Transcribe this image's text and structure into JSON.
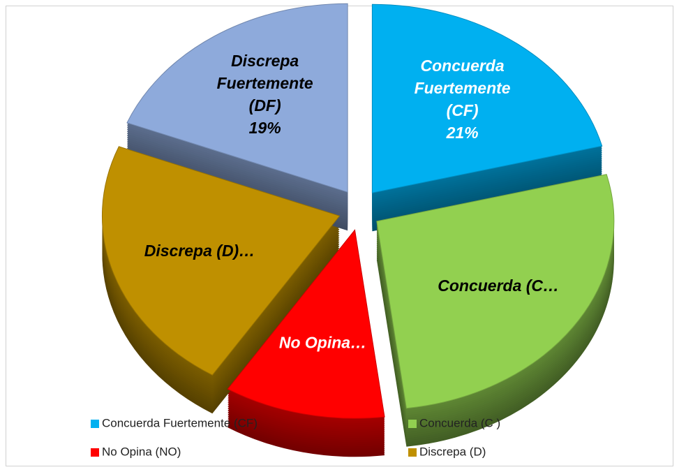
{
  "chart_data": {
    "type": "pie",
    "categories": [
      "Concuerda Fuertemente (CF)",
      "Concuerda (C )",
      "No Opina (NO)",
      "Discrepa (D)",
      "Discrepa Fuertemente (DF)"
    ],
    "values": [
      21,
      27,
      11,
      22,
      19
    ],
    "value_labels": [
      [
        "Concuerda",
        "Fuertemente",
        "(CF)",
        "21%"
      ],
      [
        "Concuerda (C…"
      ],
      [
        "No Opina…"
      ],
      [
        "Discrepa (D)…"
      ],
      [
        "Discrepa",
        "Fuertemente",
        "(DF)",
        "19%"
      ]
    ],
    "colors": [
      "#00b0f0",
      "#92d050",
      "#ff0000",
      "#bf9000",
      "#8eaadb"
    ],
    "legend": "bottom"
  }
}
